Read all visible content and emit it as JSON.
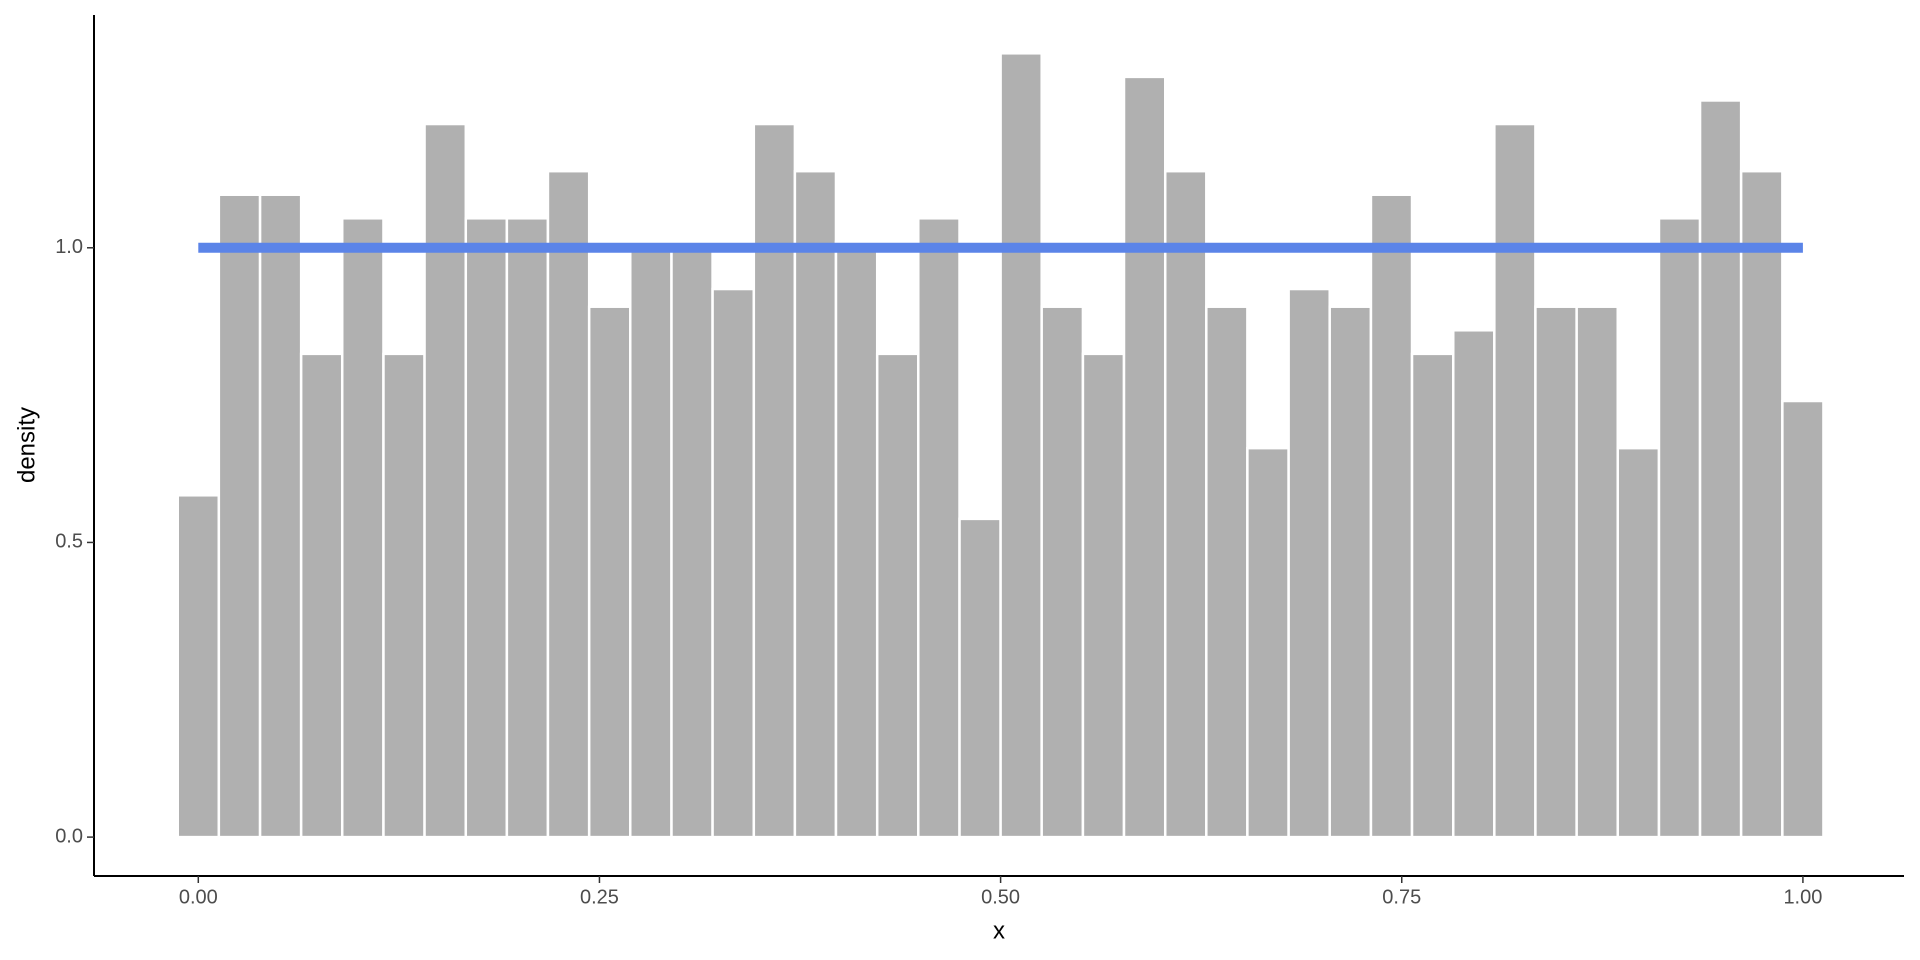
{
  "chart_data": {
    "type": "histogram",
    "xlabel": "x",
    "ylabel": "density",
    "bins": [
      -0.0128,
      0.0128,
      0.0385,
      0.0641,
      0.0897,
      0.1154,
      0.141,
      0.1667,
      0.1923,
      0.2179,
      0.2436,
      0.2692,
      0.2949,
      0.3205,
      0.3462,
      0.3718,
      0.3974,
      0.4231,
      0.4487,
      0.4744,
      0.5,
      0.5256,
      0.5513,
      0.5769,
      0.6026,
      0.6282,
      0.6538,
      0.6795,
      0.7051,
      0.7308,
      0.7564,
      0.7821,
      0.8077,
      0.8333,
      0.859,
      0.8846,
      0.9103,
      0.9359,
      0.9615,
      0.9872,
      1.0128
    ],
    "values": [
      0.58,
      1.09,
      1.09,
      0.82,
      1.05,
      0.82,
      1.21,
      1.05,
      1.05,
      1.13,
      0.9,
      1.01,
      1.01,
      0.93,
      1.21,
      1.13,
      1.01,
      0.82,
      1.05,
      0.54,
      1.33,
      0.9,
      0.82,
      1.29,
      1.13,
      0.9,
      0.66,
      0.93,
      0.9,
      1.09,
      0.82,
      0.86,
      1.21,
      0.9,
      0.9,
      0.66,
      1.05,
      1.25,
      1.13,
      0.74
    ],
    "color": "#b0b0b0",
    "line": {
      "x": [
        0,
        1
      ],
      "values": [
        1,
        1
      ],
      "color": "#5b84e8"
    },
    "xlim": [
      -0.065,
      1.063
    ],
    "ylim": [
      -0.066,
      1.395
    ],
    "xticks": [
      {
        "value": 0,
        "label": "0.00"
      },
      0.25,
      {
        "value": 0.5,
        "label": "0.50"
      },
      0.75,
      {
        "value": 1,
        "label": "1.00"
      }
    ],
    "yticks": [
      {
        "value": 0,
        "label": "0.0"
      },
      0.5,
      {
        "value": 1,
        "label": "1.0"
      }
    ],
    "grid": false
  }
}
